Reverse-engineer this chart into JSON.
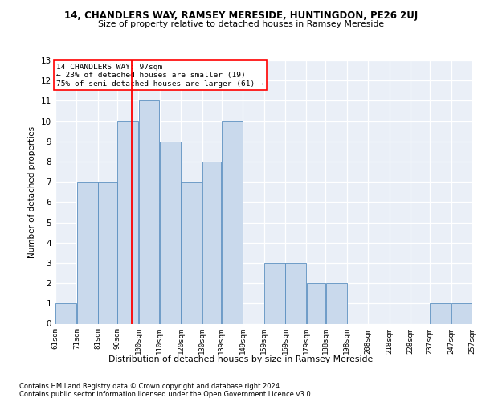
{
  "title1": "14, CHANDLERS WAY, RAMSEY MERESIDE, HUNTINGDON, PE26 2UJ",
  "title2": "Size of property relative to detached houses in Ramsey Mereside",
  "xlabel": "Distribution of detached houses by size in Ramsey Mereside",
  "ylabel": "Number of detached properties",
  "footnote1": "Contains HM Land Registry data © Crown copyright and database right 2024.",
  "footnote2": "Contains public sector information licensed under the Open Government Licence v3.0.",
  "property_size": 97,
  "property_label": "14 CHANDLERS WAY: 97sqm",
  "annotation_line1": "← 23% of detached houses are smaller (19)",
  "annotation_line2": "75% of semi-detached houses are larger (61) →",
  "bar_edges": [
    61,
    71,
    81,
    90,
    100,
    110,
    120,
    130,
    139,
    149,
    159,
    169,
    179,
    188,
    198,
    208,
    218,
    228,
    237,
    247,
    257
  ],
  "bar_heights": [
    1,
    7,
    7,
    10,
    11,
    9,
    7,
    8,
    10,
    0,
    3,
    3,
    2,
    2,
    0,
    0,
    0,
    0,
    1,
    1,
    0
  ],
  "bar_color": "#c9d9ec",
  "bar_edgecolor": "#5b8fc0",
  "vline_x": 97,
  "vline_color": "red",
  "annotation_box_color": "red",
  "background_color": "#eaeff7",
  "ylim": [
    0,
    13
  ],
  "yticks": [
    0,
    1,
    2,
    3,
    4,
    5,
    6,
    7,
    8,
    9,
    10,
    11,
    12,
    13
  ]
}
